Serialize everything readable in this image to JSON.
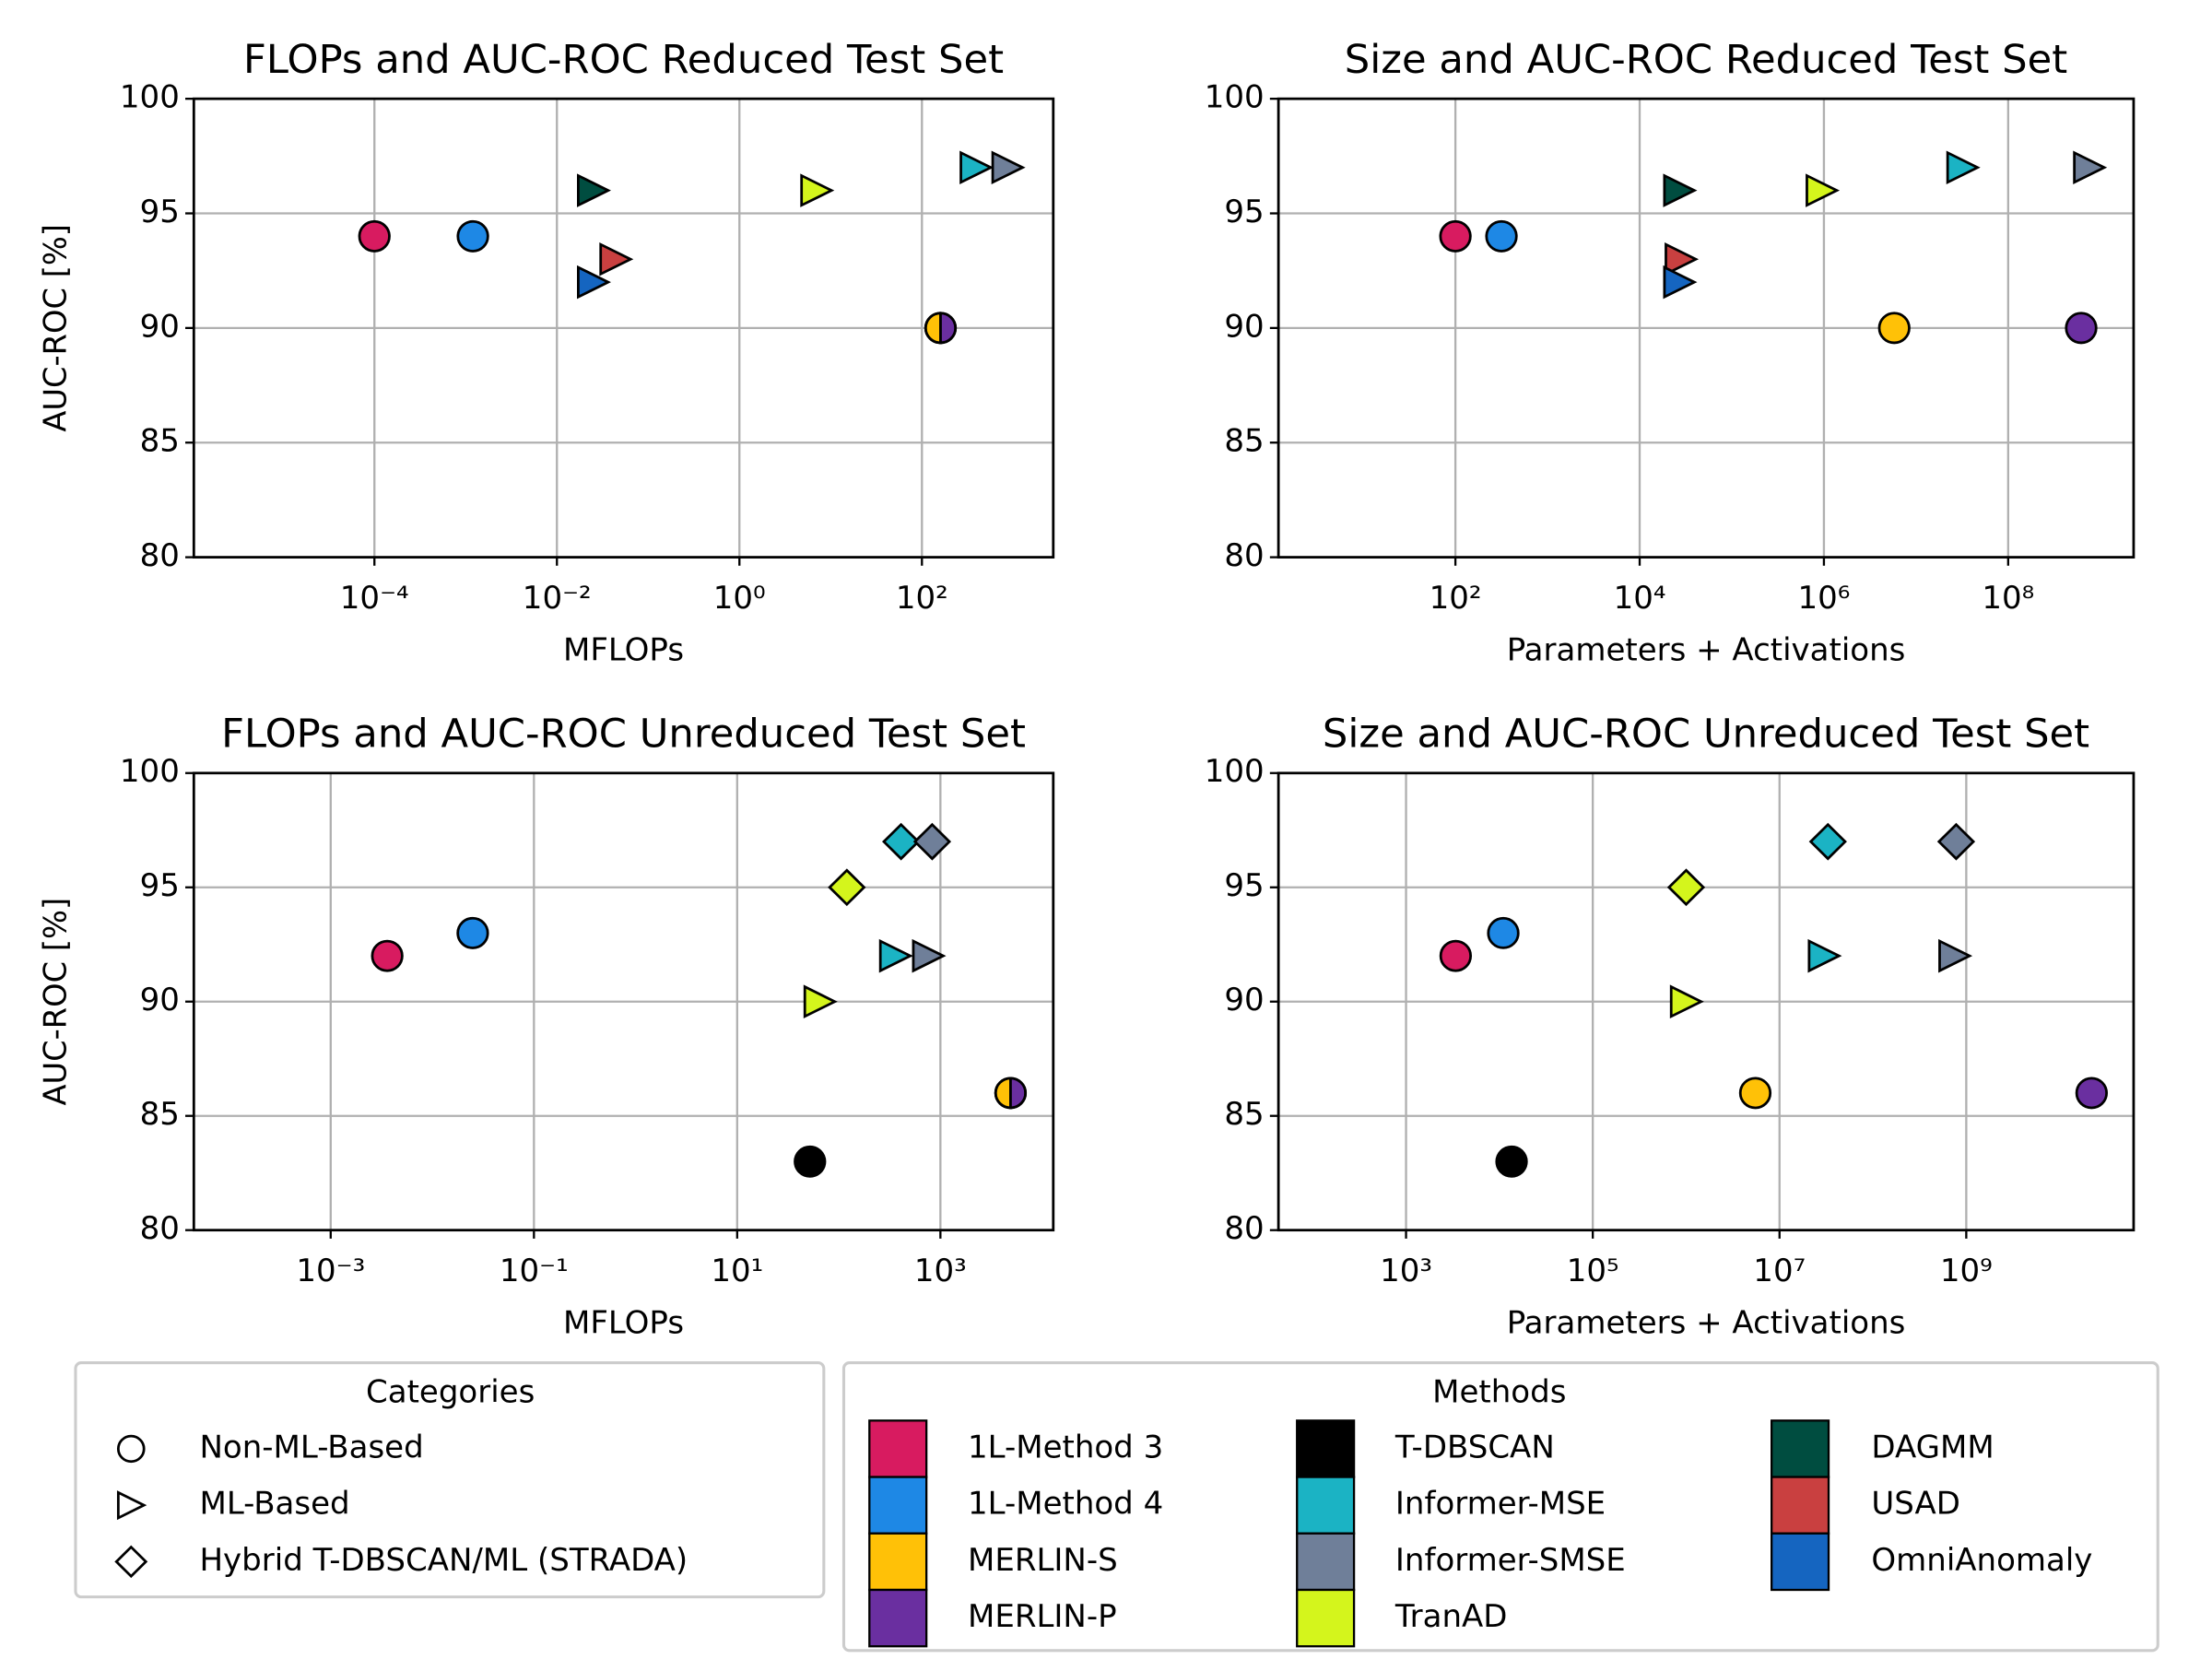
{
  "chart_data": [
    {
      "type": "scatter",
      "title": "FLOPs and AUC-ROC Reduced Test Set",
      "xlabel": "MFLOPs",
      "ylabel": "AUC-ROC [%]",
      "xscale": "log",
      "xlim": [
        1.05e-06,
        2750
      ],
      "xticks": [
        {
          "value": 0.0001,
          "label": "10⁻⁴"
        },
        {
          "value": 0.01,
          "label": "10⁻²"
        },
        {
          "value": 1,
          "label": "10⁰"
        },
        {
          "value": 100,
          "label": "10²"
        }
      ],
      "ylim": [
        80,
        100
      ],
      "yticks": [
        80,
        85,
        90,
        95,
        100
      ],
      "grid": true,
      "series": [
        {
          "name": "1L-Method 3",
          "color": "#d81b60",
          "marker": "circle",
          "x": [
            0.0001
          ],
          "values": [
            94
          ]
        },
        {
          "name": "1L-Method 4",
          "color": "#1e88e5",
          "marker": "circle",
          "x": [
            0.0012
          ],
          "values": [
            94
          ]
        },
        {
          "name": "MERLIN-S",
          "color": "#ffc107",
          "marker": "circle",
          "x": [
            160
          ],
          "values": [
            90
          ]
        },
        {
          "name": "MERLIN-P",
          "color": "#6a2fa0",
          "marker": "circle",
          "x": [
            160
          ],
          "values": [
            90
          ]
        },
        {
          "name": "DAGMM",
          "color": "#004d40",
          "marker": "triangle-right",
          "x": [
            0.025
          ],
          "values": [
            96
          ]
        },
        {
          "name": "USAD",
          "color": "#c94040",
          "marker": "triangle-right",
          "x": [
            0.044
          ],
          "values": [
            93
          ]
        },
        {
          "name": "OmniAnomaly",
          "color": "#1565c0",
          "marker": "triangle-right",
          "x": [
            0.025
          ],
          "values": [
            92
          ]
        },
        {
          "name": "TranAD",
          "color": "#d4f51c",
          "marker": "triangle-right",
          "x": [
            7
          ],
          "values": [
            96
          ]
        },
        {
          "name": "Informer-MSE",
          "color": "#1bb3c4",
          "marker": "triangle-right",
          "x": [
            390
          ],
          "values": [
            97
          ]
        },
        {
          "name": "Informer-SMSE",
          "color": "#6f7f99",
          "marker": "triangle-right",
          "x": [
            870
          ],
          "values": [
            97
          ]
        }
      ]
    },
    {
      "type": "scatter",
      "title": "Size and AUC-ROC Reduced Test Set",
      "xlabel": "Parameters + Activations",
      "xscale": "log",
      "xlim": [
        1.2,
        2300000000
      ],
      "xticks": [
        {
          "value": 100,
          "label": "10²"
        },
        {
          "value": 10000,
          "label": "10⁴"
        },
        {
          "value": 1000000,
          "label": "10⁶"
        },
        {
          "value": 100000000,
          "label": "10⁸"
        }
      ],
      "ylim": [
        80,
        100
      ],
      "yticks": [
        80,
        85,
        90,
        95,
        100
      ],
      "grid": true,
      "series": [
        {
          "name": "1L-Method 3",
          "color": "#d81b60",
          "marker": "circle",
          "x": [
            100
          ],
          "values": [
            94
          ]
        },
        {
          "name": "1L-Method 4",
          "color": "#1e88e5",
          "marker": "circle",
          "x": [
            316
          ],
          "values": [
            94
          ]
        },
        {
          "name": "MERLIN-S",
          "color": "#ffc107",
          "marker": "circle",
          "x": [
            5800000
          ],
          "values": [
            90
          ]
        },
        {
          "name": "MERLIN-P",
          "color": "#6a2fa0",
          "marker": "circle",
          "x": [
            620000000
          ],
          "values": [
            90
          ]
        },
        {
          "name": "DAGMM",
          "color": "#004d40",
          "marker": "triangle-right",
          "x": [
            27000
          ],
          "values": [
            96
          ]
        },
        {
          "name": "USAD",
          "color": "#c94040",
          "marker": "triangle-right",
          "x": [
            28000
          ],
          "values": [
            93
          ]
        },
        {
          "name": "OmniAnomaly",
          "color": "#1565c0",
          "marker": "triangle-right",
          "x": [
            27000
          ],
          "values": [
            92
          ]
        },
        {
          "name": "TranAD",
          "color": "#d4f51c",
          "marker": "triangle-right",
          "x": [
            950000
          ],
          "values": [
            96
          ]
        },
        {
          "name": "Informer-MSE",
          "color": "#1bb3c4",
          "marker": "triangle-right",
          "x": [
            32000000
          ],
          "values": [
            97
          ]
        },
        {
          "name": "Informer-SMSE",
          "color": "#6f7f99",
          "marker": "triangle-right",
          "x": [
            760000000
          ],
          "values": [
            97
          ]
        }
      ]
    },
    {
      "type": "scatter",
      "title": "FLOPs and AUC-ROC Unreduced Test Set",
      "xlabel": "MFLOPs",
      "ylabel": "AUC-ROC [%]",
      "xscale": "log",
      "xlim": [
        4.5e-05,
        12900
      ],
      "xticks": [
        {
          "value": 0.001,
          "label": "10⁻³"
        },
        {
          "value": 0.1,
          "label": "10⁻¹"
        },
        {
          "value": 10,
          "label": "10¹"
        },
        {
          "value": 1000,
          "label": "10³"
        }
      ],
      "ylim": [
        80,
        100
      ],
      "yticks": [
        80,
        85,
        90,
        95,
        100
      ],
      "grid": true,
      "series": [
        {
          "name": "1L-Method 3",
          "color": "#d81b60",
          "marker": "circle",
          "x": [
            0.0036
          ],
          "values": [
            92
          ]
        },
        {
          "name": "1L-Method 4",
          "color": "#1e88e5",
          "marker": "circle",
          "x": [
            0.025
          ],
          "values": [
            93
          ]
        },
        {
          "name": "MERLIN-S",
          "color": "#ffc107",
          "marker": "circle",
          "x": [
            4900
          ],
          "values": [
            86
          ]
        },
        {
          "name": "MERLIN-P",
          "color": "#6a2fa0",
          "marker": "circle",
          "x": [
            4900
          ],
          "values": [
            86
          ]
        },
        {
          "name": "T-DBSCAN",
          "color": "#000000",
          "marker": "circle",
          "x": [
            52
          ],
          "values": [
            83
          ]
        },
        {
          "name": "TranAD",
          "color": "#d4f51c",
          "marker": "triangle-right",
          "x": [
            65
          ],
          "values": [
            90
          ]
        },
        {
          "name": "Informer-MSE",
          "color": "#1bb3c4",
          "marker": "triangle-right",
          "x": [
            360
          ],
          "values": [
            92
          ]
        },
        {
          "name": "Informer-SMSE",
          "color": "#6f7f99",
          "marker": "triangle-right",
          "x": [
            760
          ],
          "values": [
            92
          ]
        },
        {
          "name": "TranAD",
          "color": "#d4f51c",
          "marker": "diamond",
          "x": [
            120
          ],
          "values": [
            95
          ]
        },
        {
          "name": "Informer-MSE",
          "color": "#1bb3c4",
          "marker": "diamond",
          "x": [
            410
          ],
          "values": [
            97
          ]
        },
        {
          "name": "Informer-SMSE",
          "color": "#6f7f99",
          "marker": "diamond",
          "x": [
            830
          ],
          "values": [
            97
          ]
        }
      ]
    },
    {
      "type": "scatter",
      "title": "Size and AUC-ROC Unreduced Test Set",
      "xlabel": "Parameters + Activations",
      "xscale": "log",
      "xlim": [
        43,
        62000000000
      ],
      "xticks": [
        {
          "value": 1000,
          "label": "10³"
        },
        {
          "value": 100000,
          "label": "10⁵"
        },
        {
          "value": 10000000,
          "label": "10⁷"
        },
        {
          "value": 1000000000,
          "label": "10⁹"
        }
      ],
      "ylim": [
        80,
        100
      ],
      "yticks": [
        80,
        85,
        90,
        95,
        100
      ],
      "grid": true,
      "series": [
        {
          "name": "1L-Method 3",
          "color": "#d81b60",
          "marker": "circle",
          "x": [
            3400
          ],
          "values": [
            92
          ]
        },
        {
          "name": "1L-Method 4",
          "color": "#1e88e5",
          "marker": "circle",
          "x": [
            11000
          ],
          "values": [
            93
          ]
        },
        {
          "name": "MERLIN-S",
          "color": "#ffc107",
          "marker": "circle",
          "x": [
            5500000
          ],
          "values": [
            86
          ]
        },
        {
          "name": "MERLIN-P",
          "color": "#6a2fa0",
          "marker": "circle",
          "x": [
            22000000000
          ],
          "values": [
            86
          ]
        },
        {
          "name": "T-DBSCAN",
          "color": "#000000",
          "marker": "circle",
          "x": [
            13500
          ],
          "values": [
            83
          ]
        },
        {
          "name": "TranAD",
          "color": "#d4f51c",
          "marker": "triangle-right",
          "x": [
            1000000
          ],
          "values": [
            90
          ]
        },
        {
          "name": "Informer-MSE",
          "color": "#1bb3c4",
          "marker": "triangle-right",
          "x": [
            30000000
          ],
          "values": [
            92
          ]
        },
        {
          "name": "Informer-SMSE",
          "color": "#6f7f99",
          "marker": "triangle-right",
          "x": [
            750000000
          ],
          "values": [
            92
          ]
        },
        {
          "name": "TranAD",
          "color": "#d4f51c",
          "marker": "diamond",
          "x": [
            1000000
          ],
          "values": [
            95
          ]
        },
        {
          "name": "Informer-MSE",
          "color": "#1bb3c4",
          "marker": "diamond",
          "x": [
            33000000
          ],
          "values": [
            97
          ]
        },
        {
          "name": "Informer-SMSE",
          "color": "#6f7f99",
          "marker": "diamond",
          "x": [
            780000000
          ],
          "values": [
            97
          ]
        }
      ]
    }
  ],
  "legend": {
    "categories": {
      "title": "Categories",
      "items": [
        {
          "label": "Non-ML-Based",
          "marker": "circle"
        },
        {
          "label": "ML-Based",
          "marker": "triangle-right"
        },
        {
          "label": "Hybrid T-DBSCAN/ML (STRADA)",
          "marker": "diamond"
        }
      ]
    },
    "methods": {
      "title": "Methods",
      "items": [
        {
          "label": "1L-Method 3",
          "color": "#d81b60"
        },
        {
          "label": "1L-Method 4",
          "color": "#1e88e5"
        },
        {
          "label": "MERLIN-S",
          "color": "#ffc107"
        },
        {
          "label": "MERLIN-P",
          "color": "#6a2fa0"
        },
        {
          "label": "T-DBSCAN",
          "color": "#000000"
        },
        {
          "label": "Informer-MSE",
          "color": "#1bb3c4"
        },
        {
          "label": "Informer-SMSE",
          "color": "#6f7f99"
        },
        {
          "label": "TranAD",
          "color": "#d4f51c"
        },
        {
          "label": "DAGMM",
          "color": "#004d40"
        },
        {
          "label": "USAD",
          "color": "#c94040"
        },
        {
          "label": "OmniAnomaly",
          "color": "#1565c0"
        }
      ]
    }
  }
}
